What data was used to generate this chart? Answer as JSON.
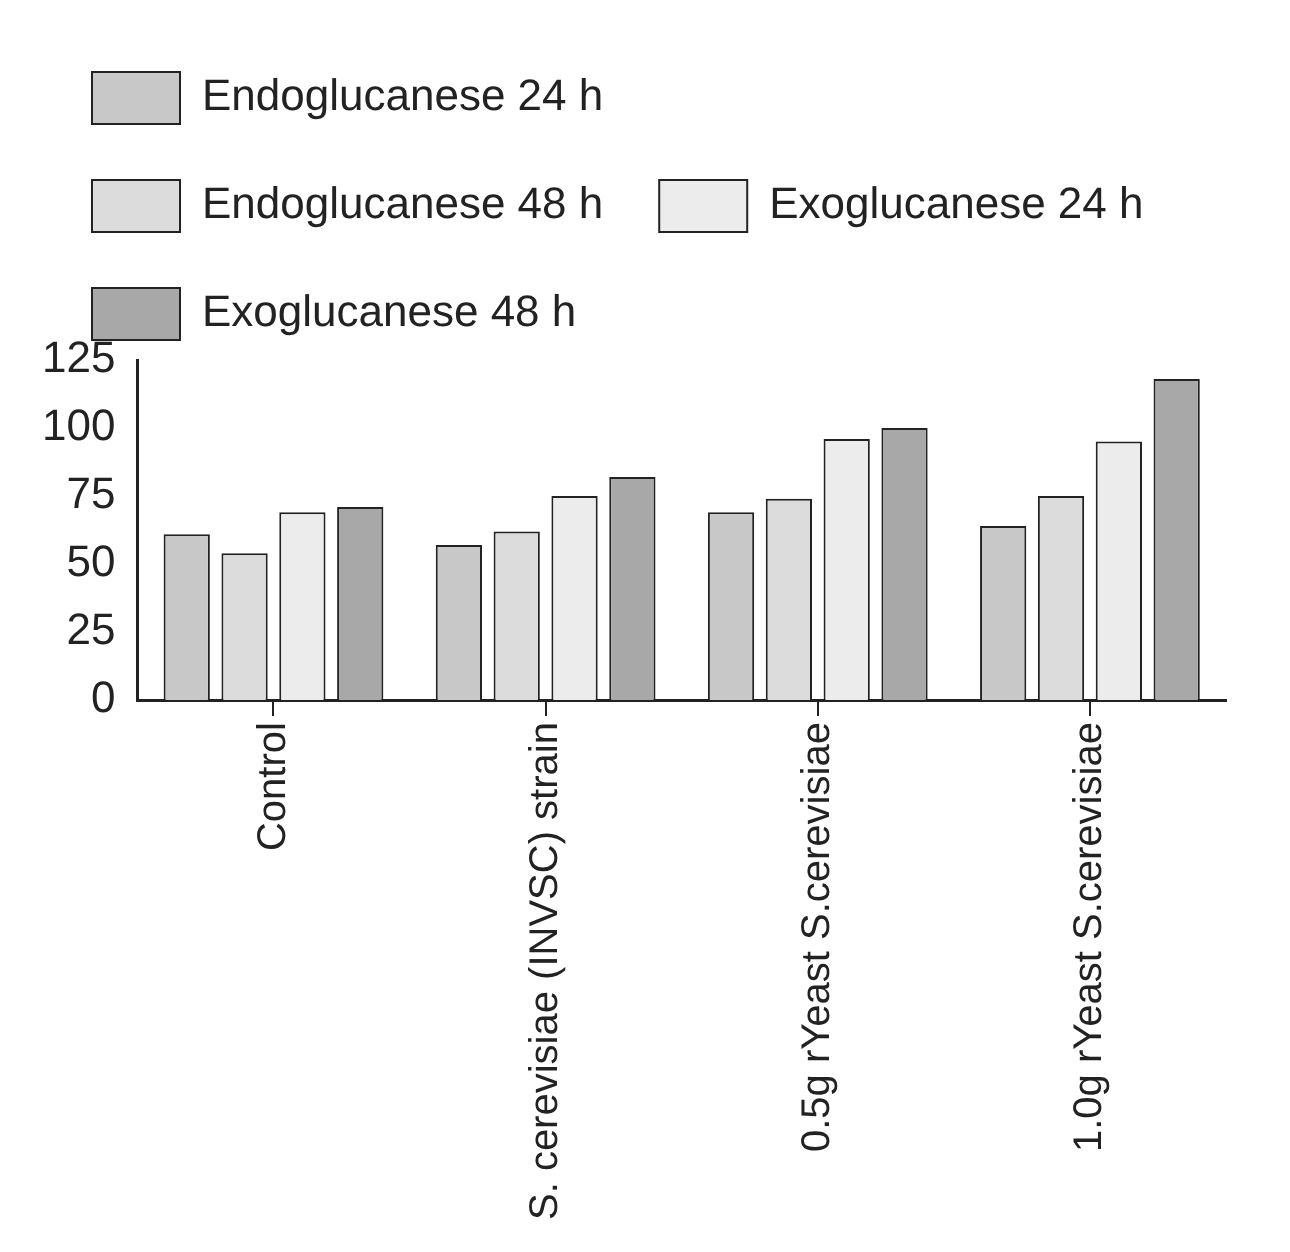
{
  "chart_data": {
    "type": "bar",
    "categories": [
      "Control",
      "S. cerevisiae (INVSC) strain",
      "0.5g rYeast S.cerevisiae",
      "1.0g rYeast S.cerevisiae"
    ],
    "series": [
      {
        "name": "Endoglucanese 24 h",
        "color": "#c8c8c8",
        "values": [
          61,
          57,
          69,
          64
        ]
      },
      {
        "name": "Endoglucanese 48 h",
        "color": "#dcdcdc",
        "values": [
          54,
          62,
          74,
          75
        ]
      },
      {
        "name": "Exoglucanese 24 h",
        "color": "#ececec",
        "values": [
          69,
          75,
          96,
          95
        ]
      },
      {
        "name": "Exoglucanese 48 h",
        "color": "#a8a8a8",
        "values": [
          71,
          82,
          100,
          118
        ]
      }
    ],
    "ylim": [
      0,
      125
    ],
    "yticks": [
      0,
      25,
      50,
      75,
      100,
      125
    ],
    "grid": false,
    "legend": "top"
  }
}
